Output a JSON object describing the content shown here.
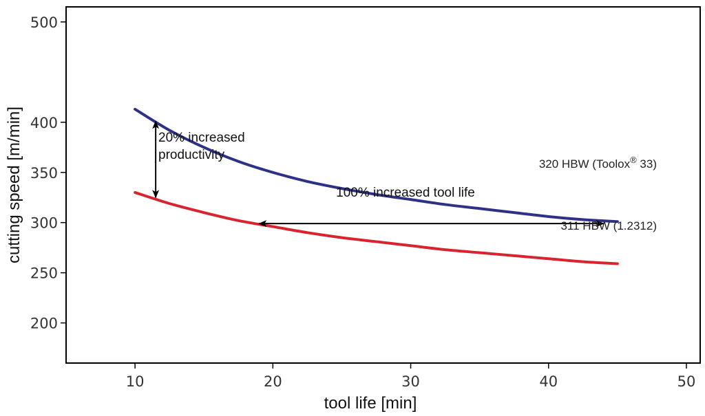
{
  "chart_data": {
    "type": "line",
    "title": "",
    "xlabel": "tool life [min]",
    "ylabel": "cutting speed [m/min]",
    "xlim": [
      5,
      51
    ],
    "ylim": [
      160,
      515
    ],
    "xticks": [
      10,
      20,
      30,
      40,
      50
    ],
    "yticks": [
      200,
      250,
      300,
      350,
      400,
      500
    ],
    "grid": false,
    "series": [
      {
        "name": "320 HBW (Toolox® 33)",
        "color": "#2e3184",
        "x": [
          10,
          12.5,
          15,
          17.5,
          20,
          22.5,
          25,
          27.5,
          30,
          32.5,
          35,
          37.5,
          40,
          42.5,
          45
        ],
        "y": [
          413,
          392,
          375,
          361,
          350,
          341,
          334,
          328,
          323,
          318,
          314,
          310,
          306,
          303,
          301
        ]
      },
      {
        "name": "311 HBW (1.2312)",
        "color": "#d9232e",
        "x": [
          10,
          12.5,
          15,
          17.5,
          20,
          22.5,
          25,
          27.5,
          30,
          32.5,
          35,
          37.5,
          40,
          42.5,
          45
        ],
        "y": [
          330,
          319,
          310,
          302,
          296,
          290,
          285,
          281,
          277,
          273,
          270,
          267,
          264,
          261,
          259
        ]
      }
    ],
    "annotations": {
      "productivity": {
        "line1": "20% increased",
        "line2": "productivity",
        "x": 11.5,
        "y_from": 325,
        "y_to": 401
      },
      "tool_life": {
        "text": "100% increased tool life",
        "y": 299,
        "x_from": 19,
        "x_to": 44
      }
    },
    "series_labels": {
      "toolox_main": "320 HBW (Toolox",
      "toolox_sup": "®",
      "toolox_end": " 33)",
      "steel": "311 HBW (1.2312)"
    }
  }
}
